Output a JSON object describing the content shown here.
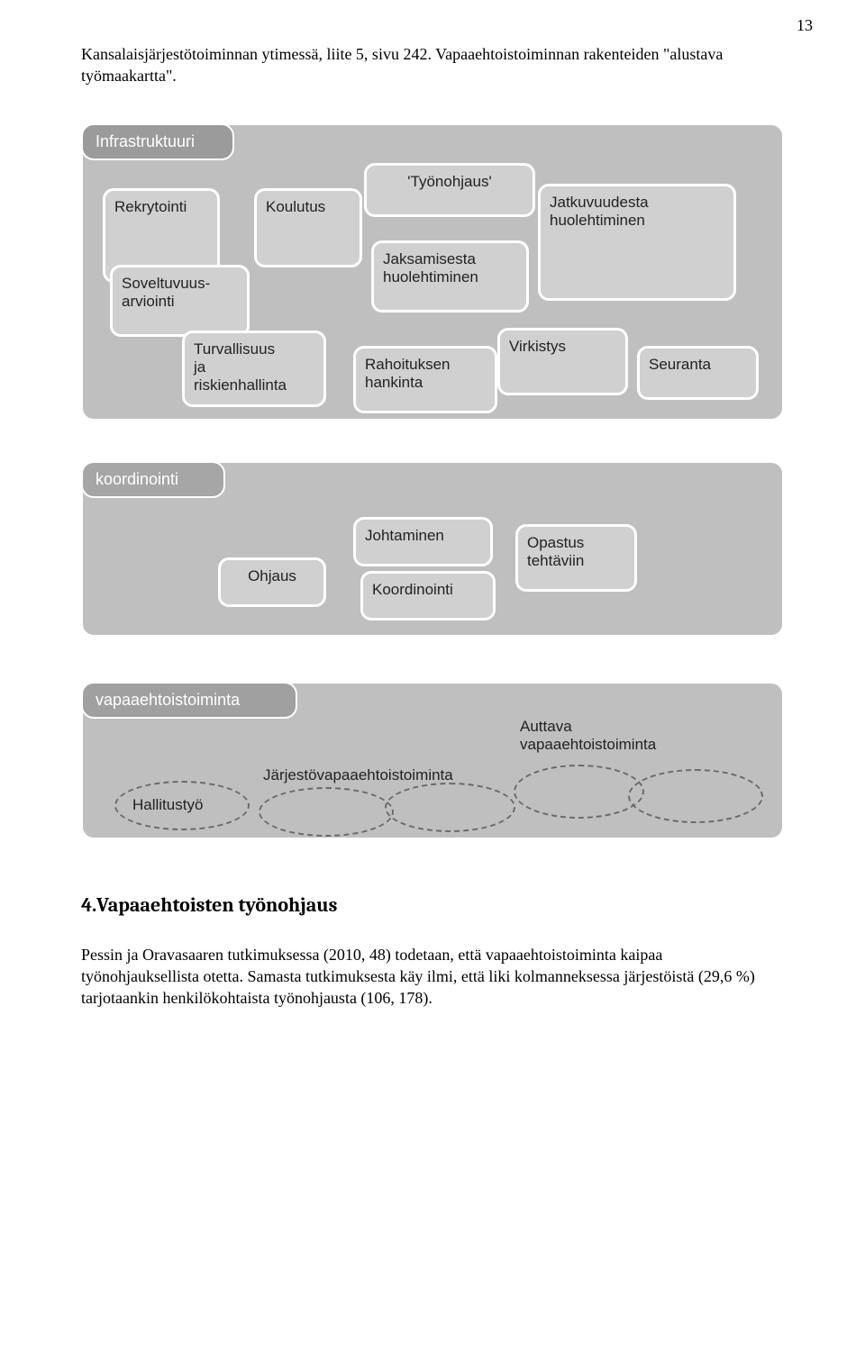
{
  "page_number": "13",
  "intro_text": "Kansalaisjärjestötoiminnan ytimessä, liite 5, sivu 242. Vapaaehtoistoiminnan rakenteiden \"alustava työmaakartta\".",
  "diagram": {
    "background_color": "#ffffff",
    "box_border_color": "#ffffff",
    "big_box_fill": "#bfbfbf",
    "node_fill": "#d0d0d0",
    "text_color": "#222222",
    "font_family": "Trebuchet MS",
    "block1": {
      "tab": "Infrastruktuuri",
      "tab_fill": "#9b9b9b",
      "tab_text_color": "#ffffff",
      "nodes": {
        "rekrytointi": "Rekrytointi",
        "koulutus": "Koulutus",
        "tyonohjaus": "'Työnohjaus'",
        "soveltuvuus_l1": "Soveltuvuus-",
        "soveltuvuus_l2": "arviointi",
        "jaksamisesta_l1": "Jaksamisesta",
        "jaksamisesta_l2": "huolehtiminen",
        "jatkuvuudesta_l1": "Jatkuvuudesta",
        "jatkuvuudesta_l2": "huolehtiminen",
        "turvallisuus_l1": "Turvallisuus",
        "turvallisuus_l2": "ja",
        "turvallisuus_l3": "riskienhallinta",
        "rahoituksen_l1": "Rahoituksen",
        "rahoituksen_l2": "hankinta",
        "virkistys": "Virkistys",
        "seuranta": "Seuranta"
      }
    },
    "block2": {
      "tab": "koordinointi",
      "tab_fill": "#a6a6a6",
      "tab_text_color": "#ffffff",
      "nodes": {
        "ohjaus": "Ohjaus",
        "johtaminen": "Johtaminen",
        "koordinointi": "Koordinointi",
        "opastus_l1": "Opastus",
        "opastus_l2": "tehtäviin"
      }
    },
    "block3": {
      "tab": "vapaaehtoistoiminta",
      "tab_fill": "#a0a0a0",
      "tab_text_color": "#ffffff",
      "labels": {
        "jarjesto": "Järjestövapaaehtoistoiminta",
        "auttava_l1": "Auttava",
        "auttava_l2": "vapaaehtoistoiminta",
        "hallitustyo": "Hallitustyö"
      },
      "ellipse_dash_color": "#6a6a6a",
      "ellipse_count": 5
    }
  },
  "section_heading": "4.Vapaaehtoisten työnohjaus",
  "body_paragraph": "Pessin ja Oravasaaren tutkimuksessa (2010, 48) todetaan, että vapaaehtoistoiminta kaipaa työnohjauksellista otetta. Samasta tutkimuksesta käy ilmi, että liki kolmanneksessa järjestöistä (29,6 %) tarjotaankin henkilökohtaista työnohjausta (106, 178)."
}
